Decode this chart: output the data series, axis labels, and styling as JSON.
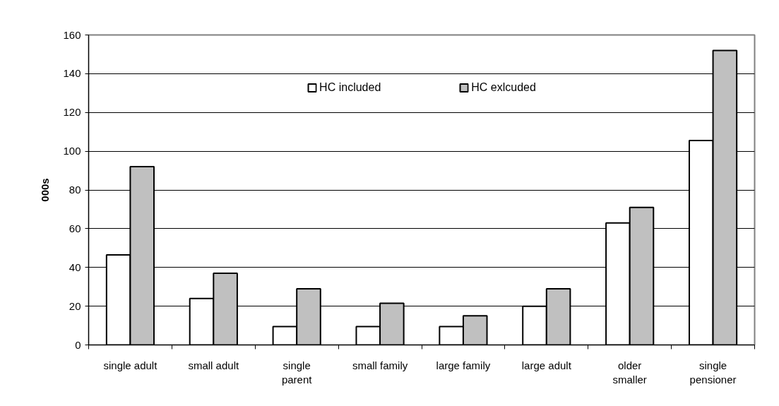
{
  "chart_data": {
    "type": "bar",
    "ylabel": "000s",
    "categories": [
      "single adult",
      "small adult",
      "single parent",
      "small family",
      "large family",
      "large adult",
      "older smaller",
      "single pensioner"
    ],
    "series": [
      {
        "name": "HC included",
        "color": "#ffffff",
        "values": [
          46.5,
          24,
          9.5,
          9.5,
          9.5,
          20,
          63,
          105.5
        ]
      },
      {
        "name": "HC exlcuded",
        "color": "#c0c0c0",
        "values": [
          92,
          37,
          29,
          21.5,
          15,
          29,
          71,
          152
        ]
      }
    ],
    "ylim": [
      0,
      160
    ],
    "yticks": [
      0,
      20,
      40,
      60,
      80,
      100,
      120,
      140,
      160
    ],
    "grid": "y",
    "legend": "top"
  }
}
